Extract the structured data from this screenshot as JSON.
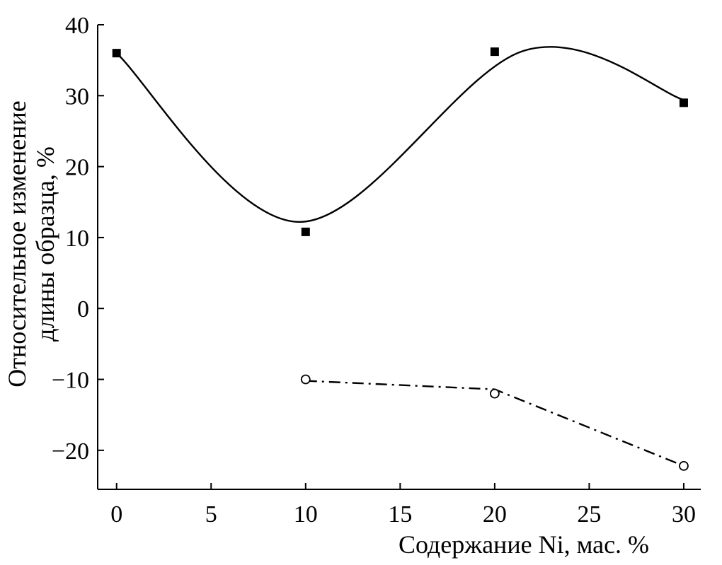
{
  "chart_data": {
    "type": "line",
    "title": "",
    "xlabel": "Содержание Ni, мас. %",
    "ylabel_line1": "Относительное изменение",
    "ylabel_line2": "длины образца, %",
    "xlim": [
      -1,
      30.9
    ],
    "ylim": [
      -25.5,
      40
    ],
    "x_ticks": [
      0,
      5,
      10,
      15,
      20,
      25,
      30
    ],
    "x_tick_labels": [
      "0",
      "5",
      "10",
      "15",
      "20",
      "25",
      "30"
    ],
    "y_ticks": [
      40,
      30,
      20,
      10,
      0,
      -10,
      -20
    ],
    "y_tick_labels": [
      "40",
      "30",
      "20",
      "10",
      "0",
      "−10",
      "−20"
    ],
    "grid": false,
    "series": [
      {
        "name": "series-1",
        "marker": "square-filled",
        "line_style": "solid",
        "x": [
          0,
          10,
          20,
          30
        ],
        "y": [
          36,
          10.8,
          36.2,
          29
        ],
        "fit_curve": [
          [
            0,
            36
          ],
          [
            9.7,
            12.2
          ],
          [
            21.5,
            36.3
          ],
          [
            30,
            29.4
          ]
        ]
      },
      {
        "name": "series-2",
        "marker": "circle-open",
        "line_style": "dash-dot",
        "x": [
          10,
          20,
          30
        ],
        "y": [
          -10,
          -12,
          -22.2
        ],
        "fit_curve": [
          [
            10,
            -10.2
          ],
          [
            20,
            -11.4
          ],
          [
            30,
            -22.2
          ]
        ]
      }
    ]
  }
}
